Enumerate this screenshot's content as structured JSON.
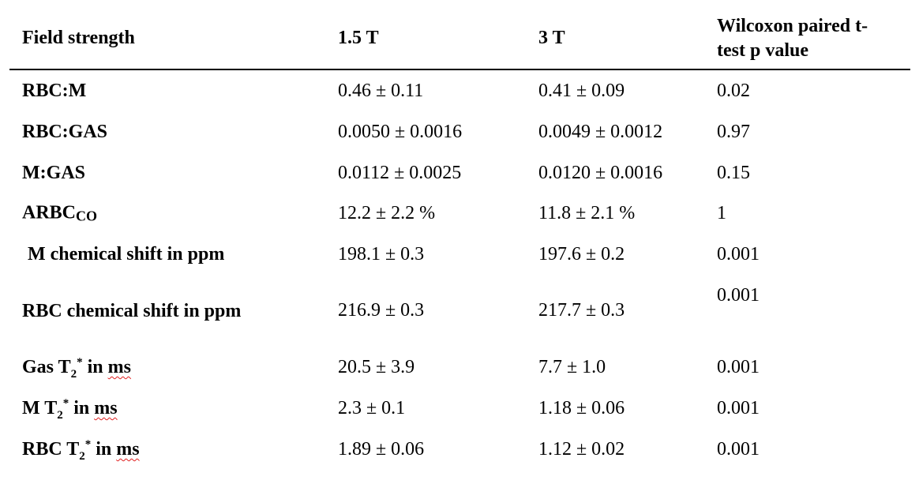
{
  "table": {
    "header": [
      "Field strength",
      "1.5 T",
      "3 T",
      [
        "Wilcoxon paired t-",
        "test p value"
      ]
    ],
    "rows": [
      {
        "label": [
          "RBC:M"
        ],
        "cells": [
          "0.46 ± 0.11",
          "0.41 ± 0.09",
          "0.02"
        ]
      },
      {
        "label": [
          "RBC:GAS"
        ],
        "cells": [
          "0.0050 ± 0.0016",
          "0.0049 ± 0.0012",
          "0.97"
        ]
      },
      {
        "label": [
          "M:GAS"
        ],
        "cells": [
          "0.0112 ± 0.0025",
          "0.0120 ± 0.0016",
          "0.15"
        ]
      },
      {
        "label": [
          "ARBC",
          "CO"
        ],
        "cells": [
          "12.2 ± 2.2 %",
          "11.8 ± 2.1 %",
          "1"
        ]
      },
      {
        "label": [
          "M chemical shift in ppm"
        ],
        "cells": [
          "198.1 ± 0.3",
          "197.6 ± 0.2",
          "0.001"
        ]
      },
      {
        "label": [
          "RBC chemical shift in ppm"
        ],
        "cells": [
          "216.9 ± 0.3",
          "217.7 ± 0.3",
          "0.001"
        ]
      },
      {
        "label": [
          "Gas T",
          "2",
          "*",
          " in ",
          "ms"
        ],
        "cells": [
          "20.5 ± 3.9",
          "7.7 ± 1.0",
          "0.001"
        ]
      },
      {
        "label": [
          "M T",
          "2",
          "*",
          " in ",
          "ms"
        ],
        "cells": [
          "2.3 ± 0.1",
          "1.18 ± 0.06",
          "0.001"
        ]
      },
      {
        "label": [
          "RBC T",
          "2",
          "*",
          " in ",
          "ms"
        ],
        "cells": [
          "1.89 ± 0.06",
          "1.12 ± 0.02",
          "0.001"
        ]
      }
    ]
  }
}
